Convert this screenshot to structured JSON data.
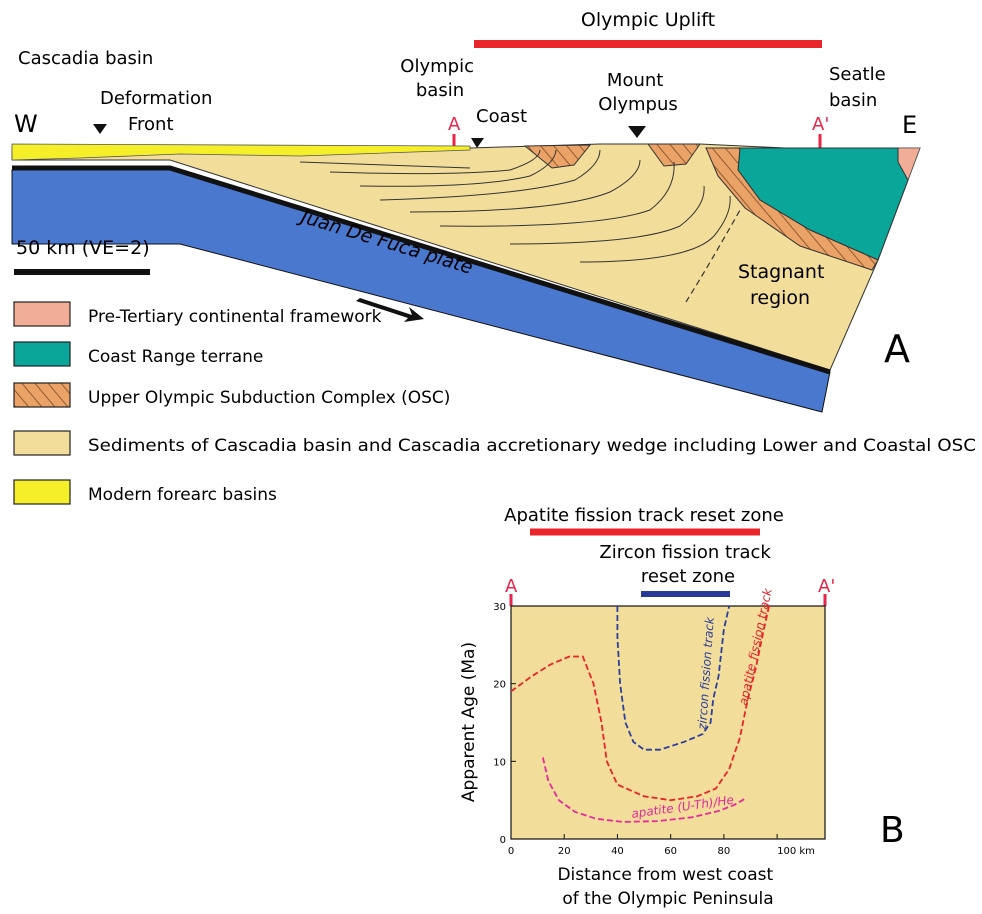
{
  "cross_section": {
    "olympic_uplift": "Olympic Uplift",
    "cascadia_basin": "Cascadia basin",
    "deformation_front": [
      "Deformation",
      "Front"
    ],
    "olympic_basin": [
      "Olympic",
      "basin"
    ],
    "coast": "Coast",
    "mount_olympus": [
      "Mount",
      "Olympus"
    ],
    "seattle_basin": [
      "Seatle",
      "basin"
    ],
    "west": "W",
    "east": "E",
    "marker_a": "A",
    "marker_a_prime": "A'",
    "scale_label": "50 km (VE=2)",
    "plate_label": "Juan De Fuca plate",
    "stagnant_region": [
      "Stagnant",
      "region"
    ],
    "panel_letter": "A"
  },
  "legend": [
    {
      "label": "Pre-Tertiary continental framework",
      "color": "#f2ad96",
      "pattern": "solid"
    },
    {
      "label": "Coast Range terrane",
      "color": "#0aa69a",
      "pattern": "solid"
    },
    {
      "label": "Upper Olympic Subduction Complex (OSC)",
      "color": "#eaa266",
      "pattern": "hatch"
    },
    {
      "label": "Sediments of Cascadia basin and Cascadia accretionary wedge including Lower and Coastal OSC",
      "color": "#f3dd9b",
      "pattern": "solid"
    },
    {
      "label": "Modern forearc basins",
      "color": "#f5ef2a",
      "pattern": "solid"
    }
  ],
  "colors": {
    "uplift_bar": "#e8252a",
    "zircon_bar": "#263a98",
    "sediment": "#f3dd9b",
    "plate": "#4a78cf",
    "forearc": "#f5ef2a",
    "coast_range": "#0aa69a",
    "pre_tertiary": "#f2ad96",
    "osc": "#eaa266",
    "marker": "#e8254a"
  },
  "panel_b": {
    "apatite_reset_zone": "Apatite fission track reset zone",
    "zircon_reset_zone": [
      "Zircon fission track",
      "reset zone"
    ],
    "marker_a": "A",
    "marker_a_prime": "A'",
    "panel_letter": "B"
  },
  "chart_data": {
    "type": "line",
    "xlabel": [
      "Distance from west coast",
      "of the Olympic Peninsula"
    ],
    "ylabel": "Apparent Age (Ma)",
    "xlim": [
      0,
      118
    ],
    "ylim": [
      0,
      30
    ],
    "x_ticks": [
      0,
      20,
      40,
      60,
      80,
      100
    ],
    "x_tick_labels": [
      "0",
      "20",
      "40",
      "60",
      "80",
      "100 km"
    ],
    "y_ticks": [
      0,
      10,
      20,
      30
    ],
    "grid": false,
    "series": [
      {
        "name": "zircon fission track",
        "color": "#2c3f9c",
        "x": [
          40,
          40,
          41,
          43,
          46,
          50,
          56,
          65,
          72,
          75,
          76,
          78,
          79,
          80,
          82
        ],
        "y": [
          30,
          26,
          20,
          15,
          12.5,
          11.5,
          11.5,
          12.5,
          13.5,
          15,
          18,
          21,
          24,
          27,
          30
        ]
      },
      {
        "name": "apatite fission track",
        "color": "#e6252a",
        "x": [
          0,
          8,
          15,
          22,
          27,
          31,
          34,
          36,
          40,
          50,
          60,
          70,
          77,
          82,
          86,
          89,
          92,
          95,
          97
        ],
        "y": [
          19,
          21,
          22.5,
          23.5,
          23.5,
          20,
          15,
          10,
          7,
          5.5,
          5,
          5.5,
          6.5,
          9,
          13,
          18,
          22,
          27,
          30
        ]
      },
      {
        "name": "apatite (U-Th)/He",
        "color": "#e52a9a",
        "x": [
          12,
          14,
          18,
          24,
          32,
          42,
          55,
          68,
          78,
          84,
          88
        ],
        "y": [
          10.5,
          7.5,
          5,
          3.5,
          2.6,
          2.2,
          2.3,
          2.8,
          3.6,
          4.4,
          5.2
        ]
      }
    ]
  }
}
